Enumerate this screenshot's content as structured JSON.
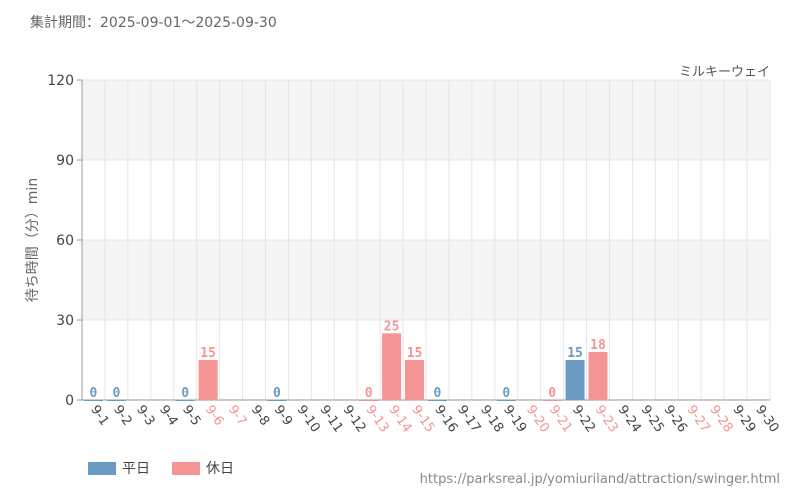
{
  "header": {
    "period": "集計期間：2025-09-01～2025-09-30",
    "attraction": "ミルキーウェイ"
  },
  "legend": {
    "weekday_label": "平日",
    "holiday_label": "休日"
  },
  "source_url": "https://parksreal.jp/yomiuriland/attraction/swinger.html",
  "colors": {
    "weekday": "#6b9bc3",
    "holiday": "#f59494",
    "band": "#f5f5f5",
    "grid": "#e6e6e6",
    "axis": "#999999"
  },
  "chart_data": {
    "type": "bar",
    "title": "",
    "xlabel": "",
    "ylabel": "待ち時間（分）min",
    "ylim": [
      0,
      120
    ],
    "yticks": [
      0,
      30,
      60,
      90,
      120
    ],
    "grid": true,
    "legend_position": "bottom-left",
    "categories": [
      "9-1",
      "9-2",
      "9-3",
      "9-4",
      "9-5",
      "9-6",
      "9-7",
      "9-8",
      "9-9",
      "9-10",
      "9-11",
      "9-12",
      "9-13",
      "9-14",
      "9-15",
      "9-16",
      "9-17",
      "9-18",
      "9-19",
      "9-20",
      "9-21",
      "9-22",
      "9-23",
      "9-24",
      "9-25",
      "9-26",
      "9-27",
      "9-28",
      "9-29",
      "9-30"
    ],
    "day_type": [
      "weekday",
      "weekday",
      "weekday",
      "weekday",
      "weekday",
      "holiday",
      "holiday",
      "weekday",
      "weekday",
      "weekday",
      "weekday",
      "weekday",
      "holiday",
      "holiday",
      "holiday",
      "weekday",
      "weekday",
      "weekday",
      "weekday",
      "holiday",
      "holiday",
      "weekday",
      "holiday",
      "weekday",
      "weekday",
      "weekday",
      "holiday",
      "holiday",
      "weekday",
      "weekday"
    ],
    "values": [
      0,
      0,
      null,
      null,
      0,
      15,
      null,
      null,
      0,
      null,
      null,
      null,
      0,
      25,
      15,
      0,
      null,
      null,
      0,
      null,
      0,
      15,
      18,
      null,
      null,
      null,
      null,
      null,
      null,
      null
    ]
  }
}
